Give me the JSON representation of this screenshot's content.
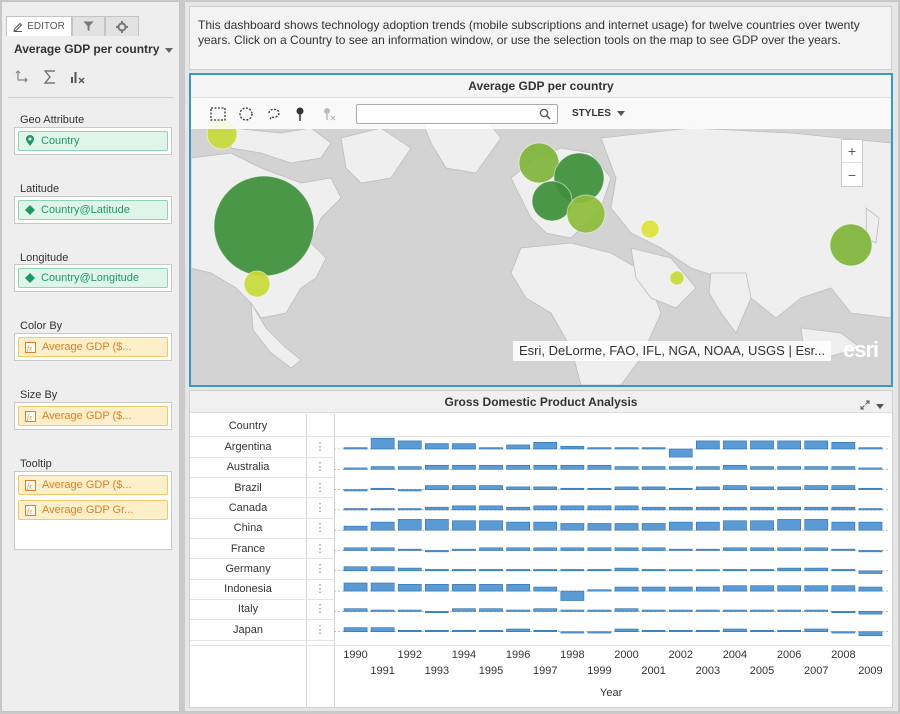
{
  "editor": {
    "tab_label": "EDITOR",
    "title": "Average GDP per country",
    "sections": [
      {
        "label": "Geo Attribute",
        "pills": [
          {
            "text": "Country",
            "kind": "geo",
            "icon": "location-pin-icon"
          }
        ]
      },
      {
        "label": "Latitude",
        "pills": [
          {
            "text": "Country@Latitude",
            "kind": "geo",
            "icon": "diamond-icon"
          }
        ]
      },
      {
        "label": "Longitude",
        "pills": [
          {
            "text": "Country@Longitude",
            "kind": "geo",
            "icon": "diamond-icon"
          }
        ]
      },
      {
        "label": "Color By",
        "pills": [
          {
            "text": "Average GDP ($...",
            "kind": "num",
            "icon": "formula-icon"
          }
        ]
      },
      {
        "label": "Size By",
        "pills": [
          {
            "text": "Average GDP ($...",
            "kind": "num",
            "icon": "formula-icon"
          }
        ]
      },
      {
        "label": "Tooltip",
        "pills": [
          {
            "text": "Average GDP ($...",
            "kind": "num",
            "icon": "formula-icon"
          },
          {
            "text": "Average GDP Gr...",
            "kind": "num",
            "icon": "formula-icon"
          }
        ]
      }
    ]
  },
  "description": "This dashboard shows technology adoption trends (mobile subscriptions and internet usage) for twelve countries over twenty years. Click on a Country to see an information window, or use the selection tools on the map to see GDP over the years.",
  "map": {
    "title": "Average GDP per country",
    "styles_label": "STYLES",
    "search_value": "",
    "zoom_in": "+",
    "zoom_out": "−",
    "attribution": "Esri, DeLorme, FAO, IFL, NGA, NOAA, USGS | Esr...",
    "logo": "esri",
    "bubbles": [
      {
        "color": "#c9d93a",
        "size": "small"
      },
      {
        "color": "#3d8f3a",
        "size": "large"
      },
      {
        "color": "#c9d93a",
        "size": "small"
      },
      {
        "color": "#7fb43b",
        "size": "medium"
      },
      {
        "color": "#3d8f3a",
        "size": "medium"
      },
      {
        "color": "#3d8f3a",
        "size": "medium"
      },
      {
        "color": "#8dbd3c",
        "size": "medium"
      },
      {
        "color": "#dde43a",
        "size": "small"
      },
      {
        "color": "#c9d93a",
        "size": "small"
      },
      {
        "color": "#7fb43b",
        "size": "medium"
      }
    ]
  },
  "table": {
    "title": "Gross Domestic Product Analysis",
    "row_header": "Country",
    "countries": [
      "Argentina",
      "Australia",
      "Brazil",
      "Canada",
      "China",
      "France",
      "Germany",
      "Indonesia",
      "Italy",
      "Japan"
    ],
    "menu_glyph": "⋮",
    "x_axis_title": "Year"
  },
  "chart_data": {
    "type": "bar",
    "title": "Gross Domestic Product Analysis",
    "xlabel": "Year",
    "ylabel": "",
    "categories": [
      "1990",
      "1991",
      "1992",
      "1993",
      "1994",
      "1995",
      "1996",
      "1997",
      "1998",
      "1999",
      "2000",
      "2001",
      "2002",
      "2003",
      "2004",
      "2005",
      "2006",
      "2007",
      "2008",
      "2009"
    ],
    "series": [
      {
        "name": "Argentina",
        "values": [
          1,
          8,
          6,
          4,
          4,
          1,
          3,
          5,
          2,
          1,
          1,
          1,
          -6,
          6,
          6,
          6,
          6,
          6,
          5,
          1
        ]
      },
      {
        "name": "Australia",
        "values": [
          1,
          2,
          2,
          3,
          3,
          3,
          3,
          3,
          3,
          3,
          2,
          2,
          2,
          2,
          3,
          2,
          2,
          2,
          2,
          1
        ]
      },
      {
        "name": "Brazil",
        "values": [
          -1,
          1,
          -1,
          3,
          3,
          3,
          2,
          2,
          1,
          1,
          2,
          2,
          1,
          2,
          3,
          2,
          2,
          3,
          3,
          1
        ]
      },
      {
        "name": "Canada",
        "values": [
          1,
          1,
          1,
          2,
          3,
          3,
          2,
          3,
          3,
          3,
          3,
          2,
          2,
          2,
          2,
          2,
          2,
          2,
          2,
          1
        ]
      },
      {
        "name": "China",
        "values": [
          3,
          6,
          8,
          8,
          7,
          7,
          6,
          6,
          5,
          5,
          5,
          5,
          6,
          6,
          7,
          7,
          8,
          8,
          6,
          6
        ]
      },
      {
        "name": "France",
        "values": [
          2,
          2,
          1,
          -1,
          1,
          2,
          2,
          2,
          2,
          2,
          2,
          2,
          1,
          1,
          2,
          2,
          2,
          2,
          1,
          -1
        ]
      },
      {
        "name": "Germany",
        "values": [
          3,
          3,
          2,
          1,
          1,
          1,
          1,
          1,
          1,
          1,
          2,
          1,
          0,
          0,
          1,
          1,
          2,
          2,
          1,
          -2
        ]
      },
      {
        "name": "Indonesia",
        "values": [
          6,
          6,
          5,
          5,
          5,
          5,
          5,
          3,
          -7,
          1,
          3,
          3,
          3,
          3,
          4,
          4,
          4,
          4,
          4,
          3
        ]
      },
      {
        "name": "Italy",
        "values": [
          2,
          1,
          1,
          -1,
          2,
          2,
          1,
          2,
          1,
          1,
          2,
          1,
          1,
          1,
          1,
          1,
          1,
          1,
          -1,
          -2
        ]
      },
      {
        "name": "Japan",
        "values": [
          3,
          3,
          1,
          1,
          1,
          1,
          2,
          1,
          -1,
          -1,
          2,
          1,
          1,
          1,
          2,
          1,
          1,
          2,
          -1,
          -3
        ]
      }
    ]
  },
  "colors": {
    "bar": "#5b9bd5",
    "bar_border": "#2f6fa8",
    "accent": "#3a97c9"
  }
}
